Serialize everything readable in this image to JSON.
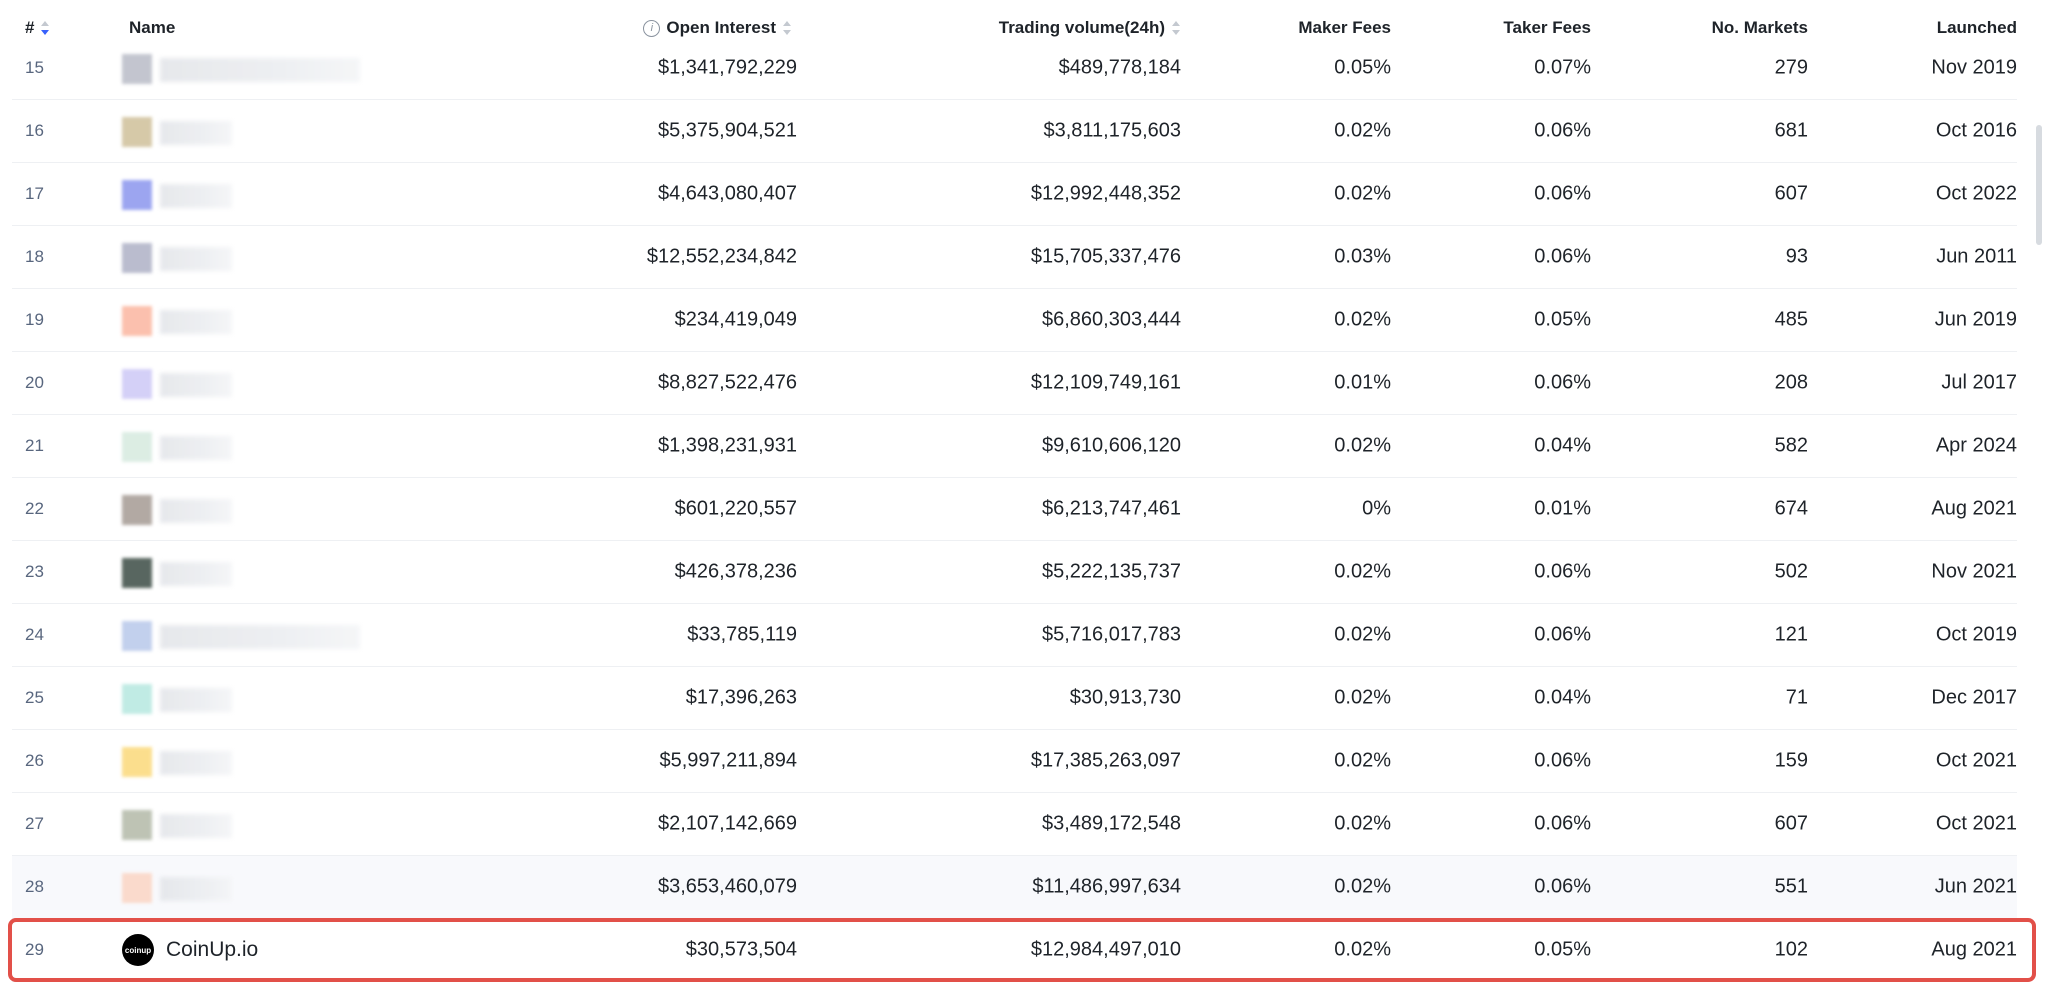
{
  "header": {
    "rank": "#",
    "name": "Name",
    "open_interest": "Open Interest",
    "volume": "Trading volume(24h)",
    "maker_fees": "Maker Fees",
    "taker_fees": "Taker Fees",
    "markets": "No. Markets",
    "launched": "Launched"
  },
  "rows": [
    {
      "rank": "15",
      "oi": "$1,341,792,229",
      "vol": "$489,778,184",
      "maker": "0.05%",
      "taker": "0.07%",
      "markets": "279",
      "launched": "Nov 2019",
      "logo_color": "#b9bcc7"
    },
    {
      "rank": "16",
      "oi": "$5,375,904,521",
      "vol": "$3,811,175,603",
      "maker": "0.02%",
      "taker": "0.06%",
      "markets": "681",
      "launched": "Oct 2016",
      "logo_color": "#cfc09a"
    },
    {
      "rank": "17",
      "oi": "$4,643,080,407",
      "vol": "$12,992,448,352",
      "maker": "0.02%",
      "taker": "0.06%",
      "markets": "607",
      "launched": "Oct 2022",
      "logo_color": "#8b96ee"
    },
    {
      "rank": "18",
      "oi": "$12,552,234,842",
      "vol": "$15,705,337,476",
      "maker": "0.03%",
      "taker": "0.06%",
      "markets": "93",
      "launched": "Jun 2011",
      "logo_color": "#aeb1c6"
    },
    {
      "rank": "19",
      "oi": "$234,419,049",
      "vol": "$6,860,303,444",
      "maker": "0.02%",
      "taker": "0.05%",
      "markets": "485",
      "launched": "Jun 2019",
      "logo_color": "#fbb6a0"
    },
    {
      "rank": "20",
      "oi": "$8,827,522,476",
      "vol": "$12,109,749,161",
      "maker": "0.01%",
      "taker": "0.06%",
      "markets": "208",
      "launched": "Jul 2017",
      "logo_color": "#cdc8f6"
    },
    {
      "rank": "21",
      "oi": "$1,398,231,931",
      "vol": "$9,610,606,120",
      "maker": "0.02%",
      "taker": "0.04%",
      "markets": "582",
      "launched": "Apr 2024",
      "logo_color": "#d6eadf"
    },
    {
      "rank": "22",
      "oi": "$601,220,557",
      "vol": "$6,213,747,461",
      "maker": "0%",
      "taker": "0.01%",
      "markets": "674",
      "launched": "Aug 2021",
      "logo_color": "#a59b94"
    },
    {
      "rank": "23",
      "oi": "$426,378,236",
      "vol": "$5,222,135,737",
      "maker": "0.02%",
      "taker": "0.06%",
      "markets": "502",
      "launched": "Nov 2021",
      "logo_color": "#3c4c45"
    },
    {
      "rank": "24",
      "oi": "$33,785,119",
      "vol": "$5,716,017,783",
      "maker": "0.02%",
      "taker": "0.06%",
      "markets": "121",
      "launched": "Oct 2019",
      "logo_color": "#b8c8ea"
    },
    {
      "rank": "25",
      "oi": "$17,396,263",
      "vol": "$30,913,730",
      "maker": "0.02%",
      "taker": "0.04%",
      "markets": "71",
      "launched": "Dec 2017",
      "logo_color": "#b6e8e0"
    },
    {
      "rank": "26",
      "oi": "$5,997,211,894",
      "vol": "$17,385,263,097",
      "maker": "0.02%",
      "taker": "0.06%",
      "markets": "159",
      "launched": "Oct 2021",
      "logo_color": "#fbd97a"
    },
    {
      "rank": "27",
      "oi": "$2,107,142,669",
      "vol": "$3,489,172,548",
      "maker": "0.02%",
      "taker": "0.06%",
      "markets": "607",
      "launched": "Oct 2021",
      "logo_color": "#b3b9a8"
    },
    {
      "rank": "28",
      "oi": "$3,653,460,079",
      "vol": "$11,486,997,634",
      "maker": "0.02%",
      "taker": "0.06%",
      "markets": "551",
      "launched": "Jun 2021",
      "logo_color": "#fbd5c4"
    }
  ],
  "highlight": {
    "rank": "29",
    "name": "CoinUp.io",
    "logo_text": "coinup",
    "oi": "$30,573,504",
    "vol": "$12,984,497,010",
    "maker": "0.02%",
    "taker": "0.05%",
    "markets": "102",
    "launched": "Aug 2021",
    "border_color": "#e25049"
  }
}
